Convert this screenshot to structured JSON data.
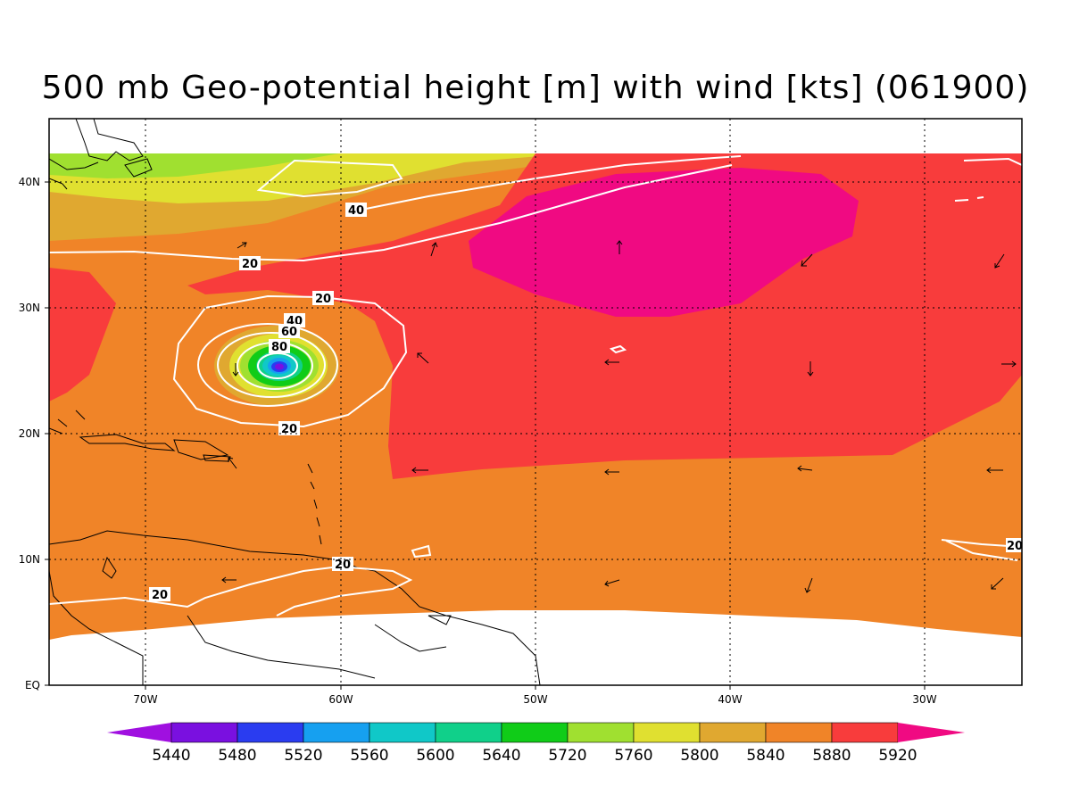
{
  "title": "500 mb Geo-potential height [m] with wind [kts] (061900)",
  "axes": {
    "lat_labels": [
      "EQ",
      "10N",
      "20N",
      "30N",
      "40N"
    ],
    "lon_labels": [
      "70W",
      "60W",
      "50W",
      "40W",
      "30W"
    ]
  },
  "colorbar": {
    "labels": [
      "5440",
      "5480",
      "5520",
      "5560",
      "5600",
      "5640",
      "5720",
      "5760",
      "5800",
      "5840",
      "5880",
      "5920"
    ],
    "colors": [
      "#a010e0",
      "#7a10e0",
      "#2a3cf0",
      "#16a0f0",
      "#10c8c8",
      "#10d08a",
      "#10cc18",
      "#a0e030",
      "#e0e030",
      "#e0a830",
      "#f08428",
      "#f83c3c",
      "#f00a82"
    ]
  },
  "wind_contour_labels": [
    "40",
    "20",
    "20",
    "40",
    "60",
    "80",
    "20",
    "20",
    "20",
    "20"
  ],
  "chart_data": {
    "type": "heatmap",
    "title": "500 mb Geo-potential height [m] with wind [kts] (061900)",
    "variable": "500 mb geopotential height (m), filled; wind speed (kts), white contours",
    "lon_range": [
      -75,
      -25
    ],
    "lat_range": [
      0,
      45
    ],
    "levels": [
      5440,
      5480,
      5520,
      5560,
      5600,
      5640,
      5720,
      5760,
      5800,
      5840,
      5880,
      5920
    ],
    "wind_contours_kts": [
      20,
      40,
      60,
      80
    ],
    "features": [
      {
        "name": "cyclone center low",
        "lon": -63,
        "lat": 25,
        "height_below": 5440
      },
      {
        "name": "subtropical high",
        "lon": -42,
        "lat": 35,
        "height_above": 5920
      }
    ]
  }
}
